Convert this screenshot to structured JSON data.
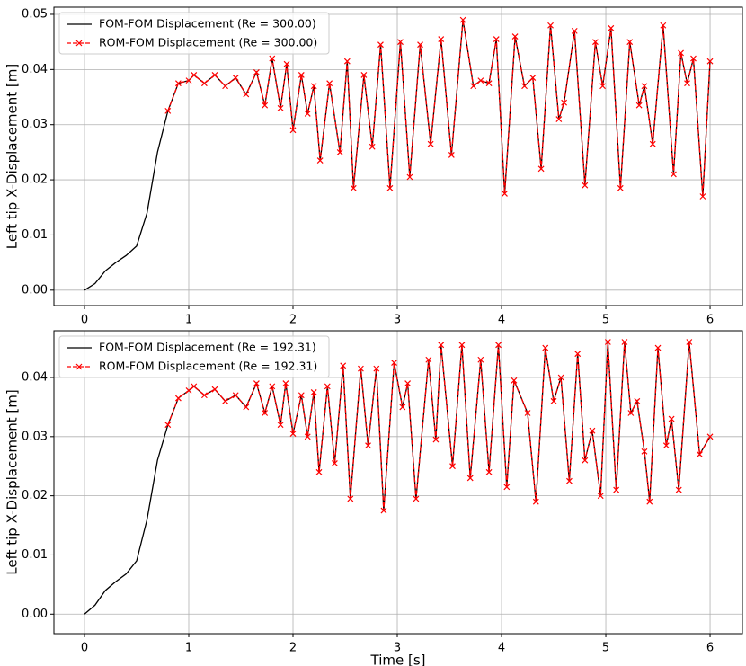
{
  "chart_data": [
    {
      "type": "line",
      "ylabel": "Left tip X-Displacement [m]",
      "x": [
        0,
        0.1,
        0.2,
        0.3,
        0.4,
        0.5,
        0.6,
        0.7,
        0.8,
        0.9,
        1.0,
        1.05,
        1.15,
        1.25,
        1.35,
        1.45,
        1.55,
        1.65,
        1.73,
        1.8,
        1.88,
        1.94,
        2.0,
        2.08,
        2.14,
        2.2,
        2.26,
        2.35,
        2.45,
        2.52,
        2.58,
        2.68,
        2.76,
        2.84,
        2.93,
        3.03,
        3.12,
        3.22,
        3.32,
        3.42,
        3.52,
        3.63,
        3.73,
        3.8,
        3.88,
        3.95,
        4.03,
        4.13,
        4.22,
        4.3,
        4.38,
        4.47,
        4.55,
        4.6,
        4.7,
        4.8,
        4.9,
        4.97,
        5.05,
        5.14,
        5.23,
        5.32,
        5.37,
        5.45,
        5.55,
        5.65,
        5.72,
        5.78,
        5.84,
        5.93,
        6.0
      ],
      "series": [
        {
          "name": "FOM-FOM Displacement (Re = 300.00)",
          "color": "#000000",
          "style": "solid",
          "marker": false,
          "values": [
            0,
            0.0012,
            0.0035,
            0.005,
            0.0063,
            0.008,
            0.014,
            0.025,
            0.0325,
            0.0375,
            0.038,
            0.039,
            0.0375,
            0.039,
            0.037,
            0.0385,
            0.0355,
            0.0395,
            0.0335,
            0.042,
            0.033,
            0.041,
            0.029,
            0.039,
            0.032,
            0.037,
            0.0235,
            0.0375,
            0.025,
            0.0415,
            0.0185,
            0.039,
            0.026,
            0.0445,
            0.0185,
            0.045,
            0.0205,
            0.0445,
            0.0265,
            0.0455,
            0.0245,
            0.049,
            0.037,
            0.038,
            0.0375,
            0.0455,
            0.0175,
            0.046,
            0.037,
            0.0385,
            0.022,
            0.048,
            0.031,
            0.034,
            0.047,
            0.019,
            0.045,
            0.037,
            0.0475,
            0.0185,
            0.045,
            0.0335,
            0.037,
            0.0265,
            0.048,
            0.021,
            0.043,
            0.0375,
            0.042,
            0.017,
            0.0415
          ]
        },
        {
          "name": "ROM-FOM Displacement (Re = 300.00)",
          "color": "#ff0000",
          "style": "dashed",
          "marker": true,
          "values": [
            null,
            null,
            null,
            null,
            null,
            null,
            null,
            null,
            0.0325,
            0.0375,
            0.038,
            0.039,
            0.0375,
            0.039,
            0.037,
            0.0385,
            0.0355,
            0.0395,
            0.0335,
            0.042,
            0.033,
            0.041,
            0.029,
            0.039,
            0.032,
            0.037,
            0.0235,
            0.0375,
            0.025,
            0.0415,
            0.0185,
            0.039,
            0.026,
            0.0445,
            0.0185,
            0.045,
            0.0205,
            0.0445,
            0.0265,
            0.0455,
            0.0245,
            0.049,
            0.037,
            0.038,
            0.0375,
            0.0455,
            0.0175,
            0.046,
            0.037,
            0.0385,
            0.022,
            0.048,
            0.031,
            0.034,
            0.047,
            0.019,
            0.045,
            0.037,
            0.0475,
            0.0185,
            0.045,
            0.0335,
            0.037,
            0.0265,
            0.048,
            0.021,
            0.043,
            0.0375,
            0.042,
            0.017,
            0.0415
          ]
        }
      ],
      "xlim": [
        -0.293,
        6.31
      ],
      "xticks": [
        0,
        1,
        2,
        3,
        4,
        5,
        6
      ],
      "ylim": [
        -0.0028,
        0.0513
      ],
      "yticks": [
        {
          "value": 0,
          "label": "0.00"
        },
        {
          "value": 0.01,
          "label": "0.01"
        },
        {
          "value": 0.02,
          "label": "0.02"
        },
        {
          "value": 0.03,
          "label": "0.03"
        },
        {
          "value": 0.04,
          "label": "0.04"
        },
        {
          "value": 0.05,
          "label": "0.05"
        }
      ],
      "grid": true,
      "legend": "upper left"
    },
    {
      "type": "line",
      "ylabel": "Left tip X-Displacement [m]",
      "xlabel": "Time [s]",
      "x": [
        0,
        0.1,
        0.2,
        0.3,
        0.4,
        0.5,
        0.6,
        0.7,
        0.8,
        0.9,
        1.0,
        1.05,
        1.15,
        1.25,
        1.35,
        1.45,
        1.55,
        1.65,
        1.73,
        1.8,
        1.88,
        1.93,
        2.0,
        2.08,
        2.14,
        2.2,
        2.25,
        2.33,
        2.4,
        2.48,
        2.55,
        2.65,
        2.72,
        2.8,
        2.87,
        2.97,
        3.05,
        3.1,
        3.18,
        3.3,
        3.37,
        3.42,
        3.53,
        3.62,
        3.7,
        3.8,
        3.88,
        3.97,
        4.05,
        4.12,
        4.25,
        4.33,
        4.42,
        4.5,
        4.57,
        4.65,
        4.73,
        4.8,
        4.87,
        4.95,
        5.02,
        5.1,
        5.18,
        5.24,
        5.3,
        5.37,
        5.42,
        5.5,
        5.58,
        5.63,
        5.7,
        5.8,
        5.9,
        6.0
      ],
      "series": [
        {
          "name": "FOM-FOM Displacement (Re = 192.31)",
          "color": "#000000",
          "style": "solid",
          "marker": false,
          "values": [
            0,
            0.0015,
            0.004,
            0.0055,
            0.0068,
            0.009,
            0.016,
            0.026,
            0.032,
            0.0365,
            0.0378,
            0.0385,
            0.037,
            0.038,
            0.036,
            0.037,
            0.035,
            0.039,
            0.034,
            0.0385,
            0.032,
            0.039,
            0.0305,
            0.037,
            0.03,
            0.0375,
            0.024,
            0.0385,
            0.0255,
            0.042,
            0.0195,
            0.0415,
            0.0285,
            0.0415,
            0.0175,
            0.0425,
            0.035,
            0.039,
            0.0195,
            0.043,
            0.0295,
            0.0455,
            0.025,
            0.0455,
            0.023,
            0.043,
            0.024,
            0.0455,
            0.0215,
            0.0395,
            0.034,
            0.019,
            0.045,
            0.036,
            0.04,
            0.0225,
            0.044,
            0.026,
            0.031,
            0.02,
            0.046,
            0.021,
            0.046,
            0.034,
            0.036,
            0.0275,
            0.019,
            0.045,
            0.0285,
            0.033,
            0.021,
            0.046,
            0.027,
            0.03
          ]
        },
        {
          "name": "ROM-FOM Displacement (Re = 192.31)",
          "color": "#ff0000",
          "style": "dashed",
          "marker": true,
          "values": [
            null,
            null,
            null,
            null,
            null,
            null,
            null,
            null,
            0.032,
            0.0365,
            0.0378,
            0.0385,
            0.037,
            0.038,
            0.036,
            0.037,
            0.035,
            0.039,
            0.034,
            0.0385,
            0.032,
            0.039,
            0.0305,
            0.037,
            0.03,
            0.0375,
            0.024,
            0.0385,
            0.0255,
            0.042,
            0.0195,
            0.0415,
            0.0285,
            0.0415,
            0.0175,
            0.0425,
            0.035,
            0.039,
            0.0195,
            0.043,
            0.0295,
            0.0455,
            0.025,
            0.0455,
            0.023,
            0.043,
            0.024,
            0.0455,
            0.0215,
            0.0395,
            0.034,
            0.019,
            0.045,
            0.036,
            0.04,
            0.0225,
            0.044,
            0.026,
            0.031,
            0.02,
            0.046,
            0.021,
            0.046,
            0.034,
            0.036,
            0.0275,
            0.019,
            0.045,
            0.0285,
            0.033,
            0.021,
            0.046,
            0.027,
            0.03
          ]
        }
      ],
      "xlim": [
        -0.293,
        6.31
      ],
      "xticks": [
        0,
        1,
        2,
        3,
        4,
        5,
        6
      ],
      "ylim": [
        -0.0033,
        0.0479
      ],
      "yticks": [
        {
          "value": 0,
          "label": "0.00"
        },
        {
          "value": 0.01,
          "label": "0.01"
        },
        {
          "value": 0.02,
          "label": "0.02"
        },
        {
          "value": 0.03,
          "label": "0.03"
        },
        {
          "value": 0.04,
          "label": "0.04"
        }
      ],
      "grid": true,
      "legend": "upper left"
    }
  ]
}
